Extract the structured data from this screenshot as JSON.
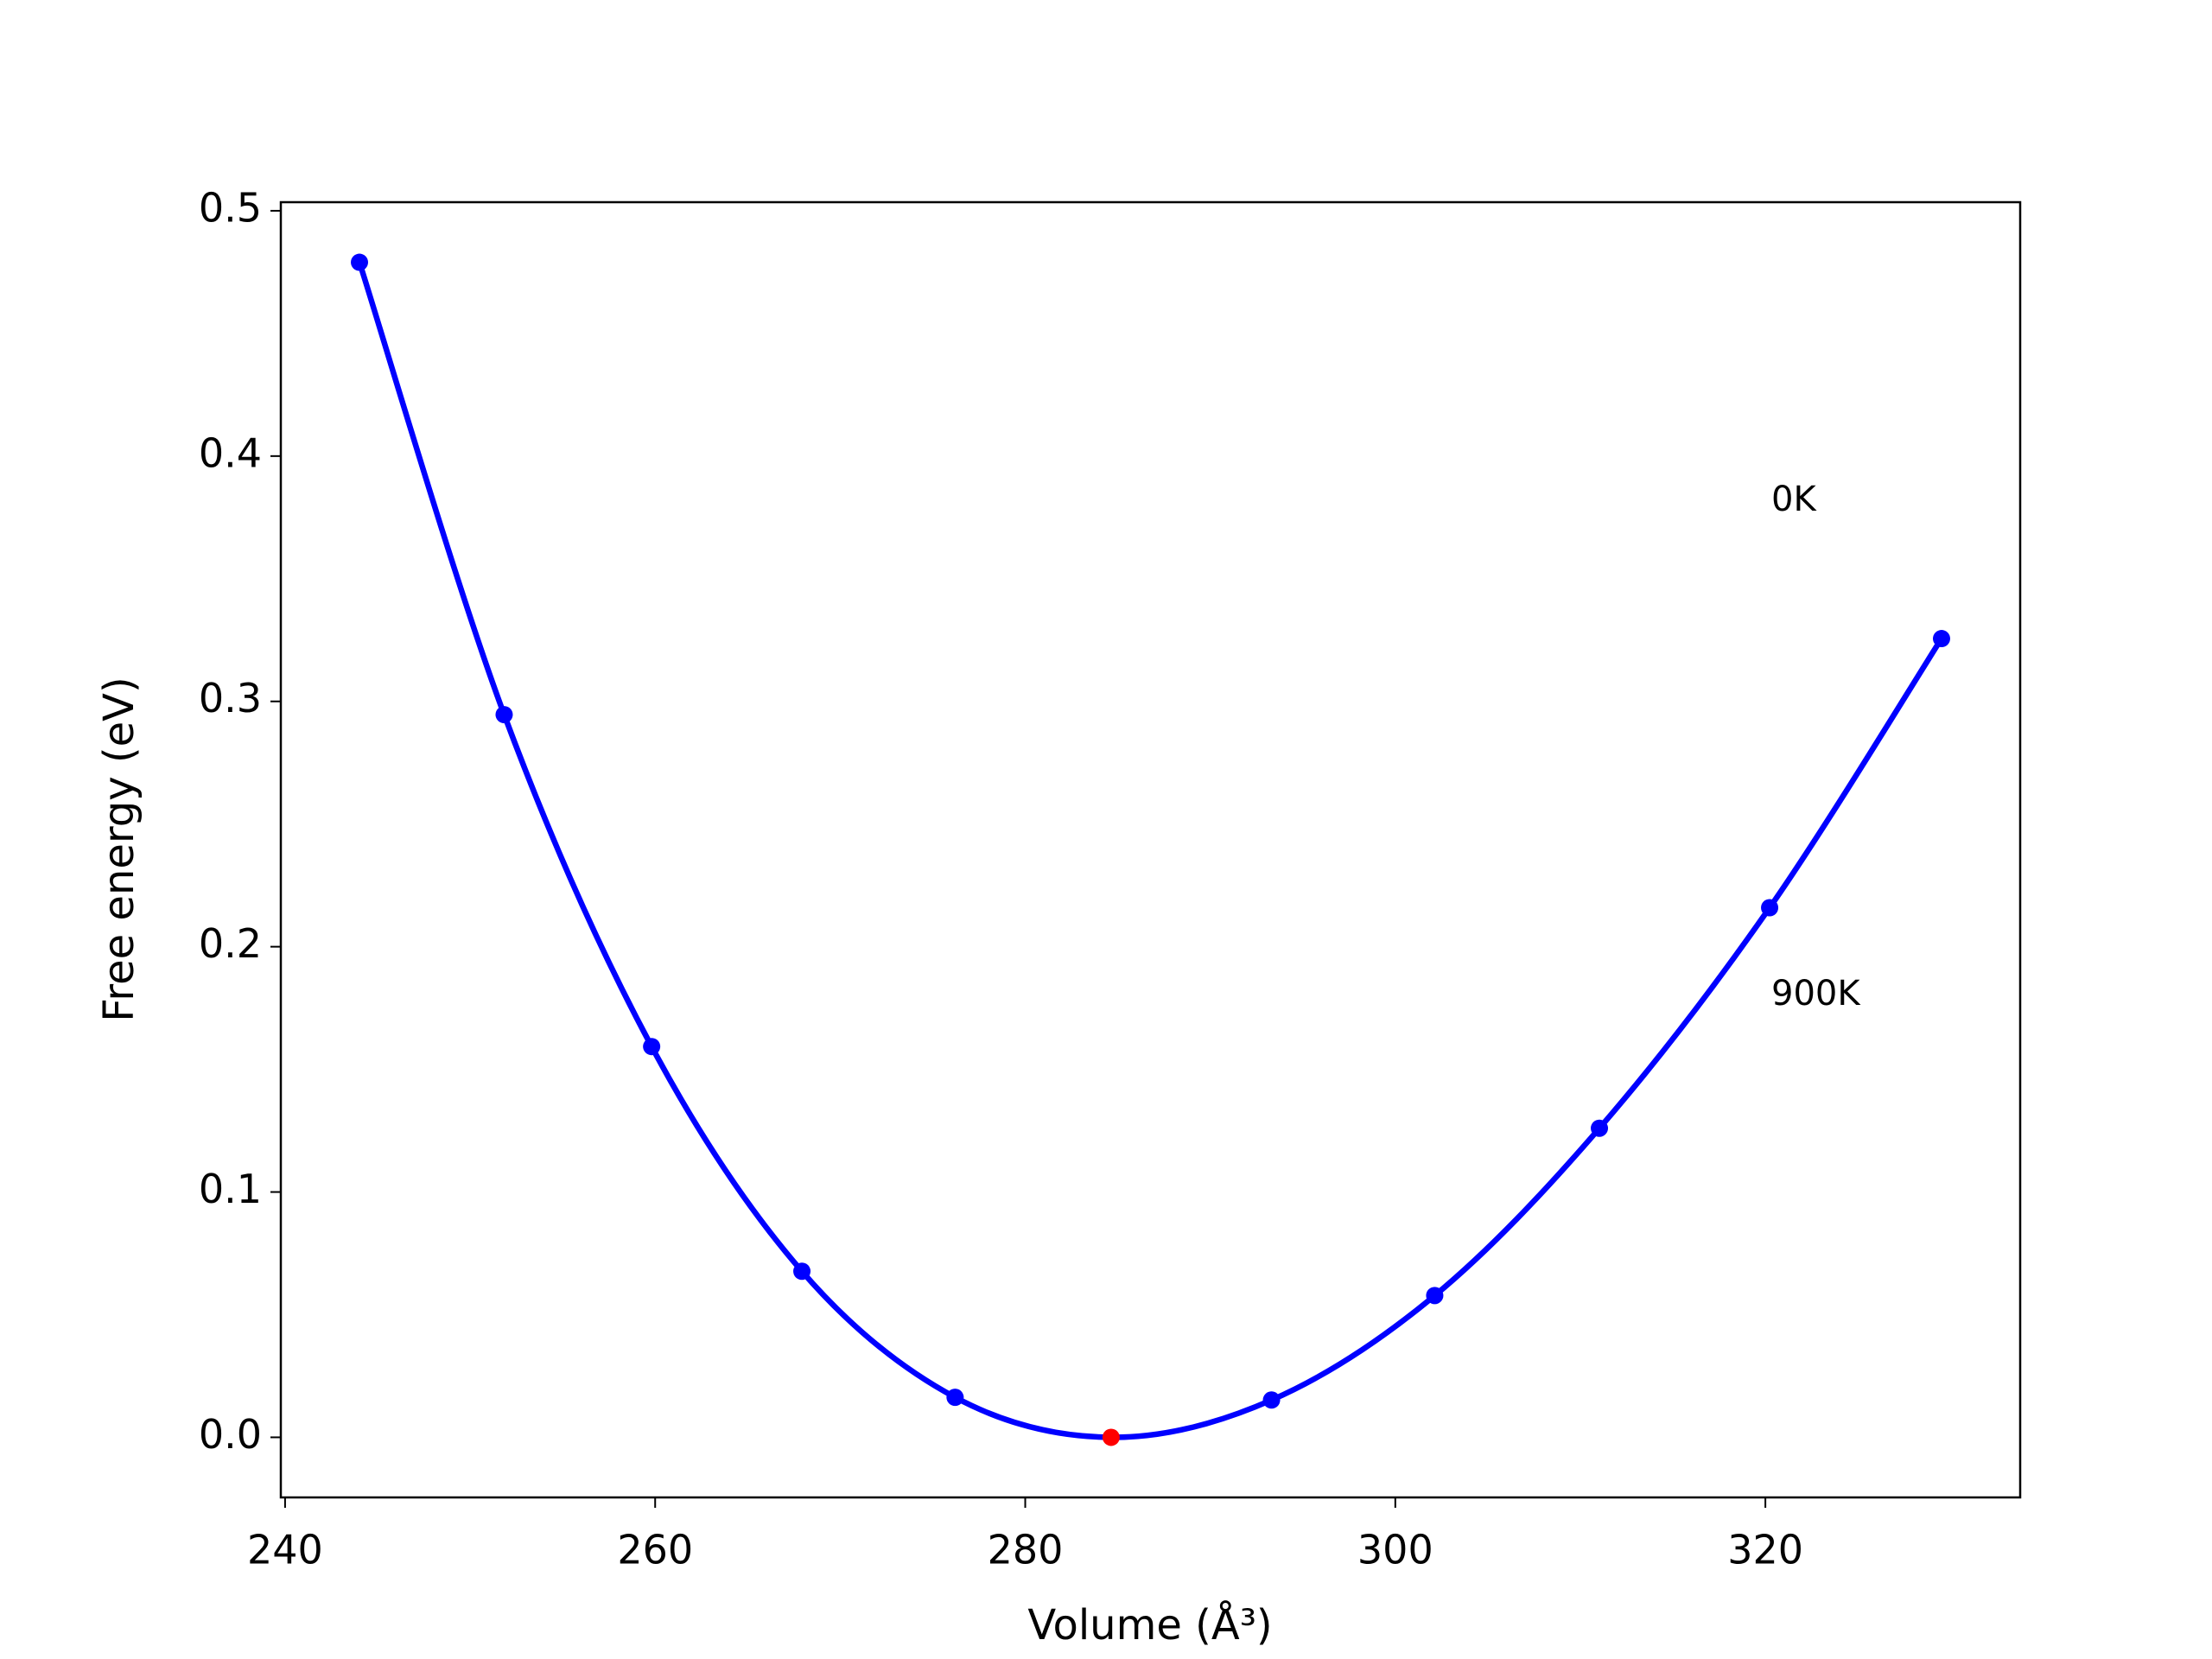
{
  "chart_data": {
    "type": "line",
    "xlabel": "Volume (Å³)",
    "ylabel": "Free energy (eV)",
    "annotations": [
      "0K",
      "900K"
    ],
    "series": [
      {
        "color": "#0000ff",
        "x": [
          244.02,
          251.84,
          259.81,
          267.93,
          276.21,
          284.64,
          293.31,
          302.13,
          311.03,
          320.23,
          329.52
        ],
        "values": [
          0.479,
          0.2946,
          0.1593,
          0.0677,
          0.0163,
          0,
          0.0152,
          0.0578,
          0.126,
          0.2159,
          0.3256
        ],
        "highlight_index": 5,
        "highlight_color": "#ff0000"
      }
    ],
    "xlim": [
      239.77,
      333.77
    ],
    "xticks": [
      240,
      260,
      280,
      300,
      320
    ],
    "ylim": [
      -0.0245,
      0.5035
    ],
    "yticks": [
      {
        "value": 0,
        "label": "0.0"
      },
      0.1,
      0.2,
      0.3,
      0.4,
      0.5
    ],
    "grid": false
  }
}
